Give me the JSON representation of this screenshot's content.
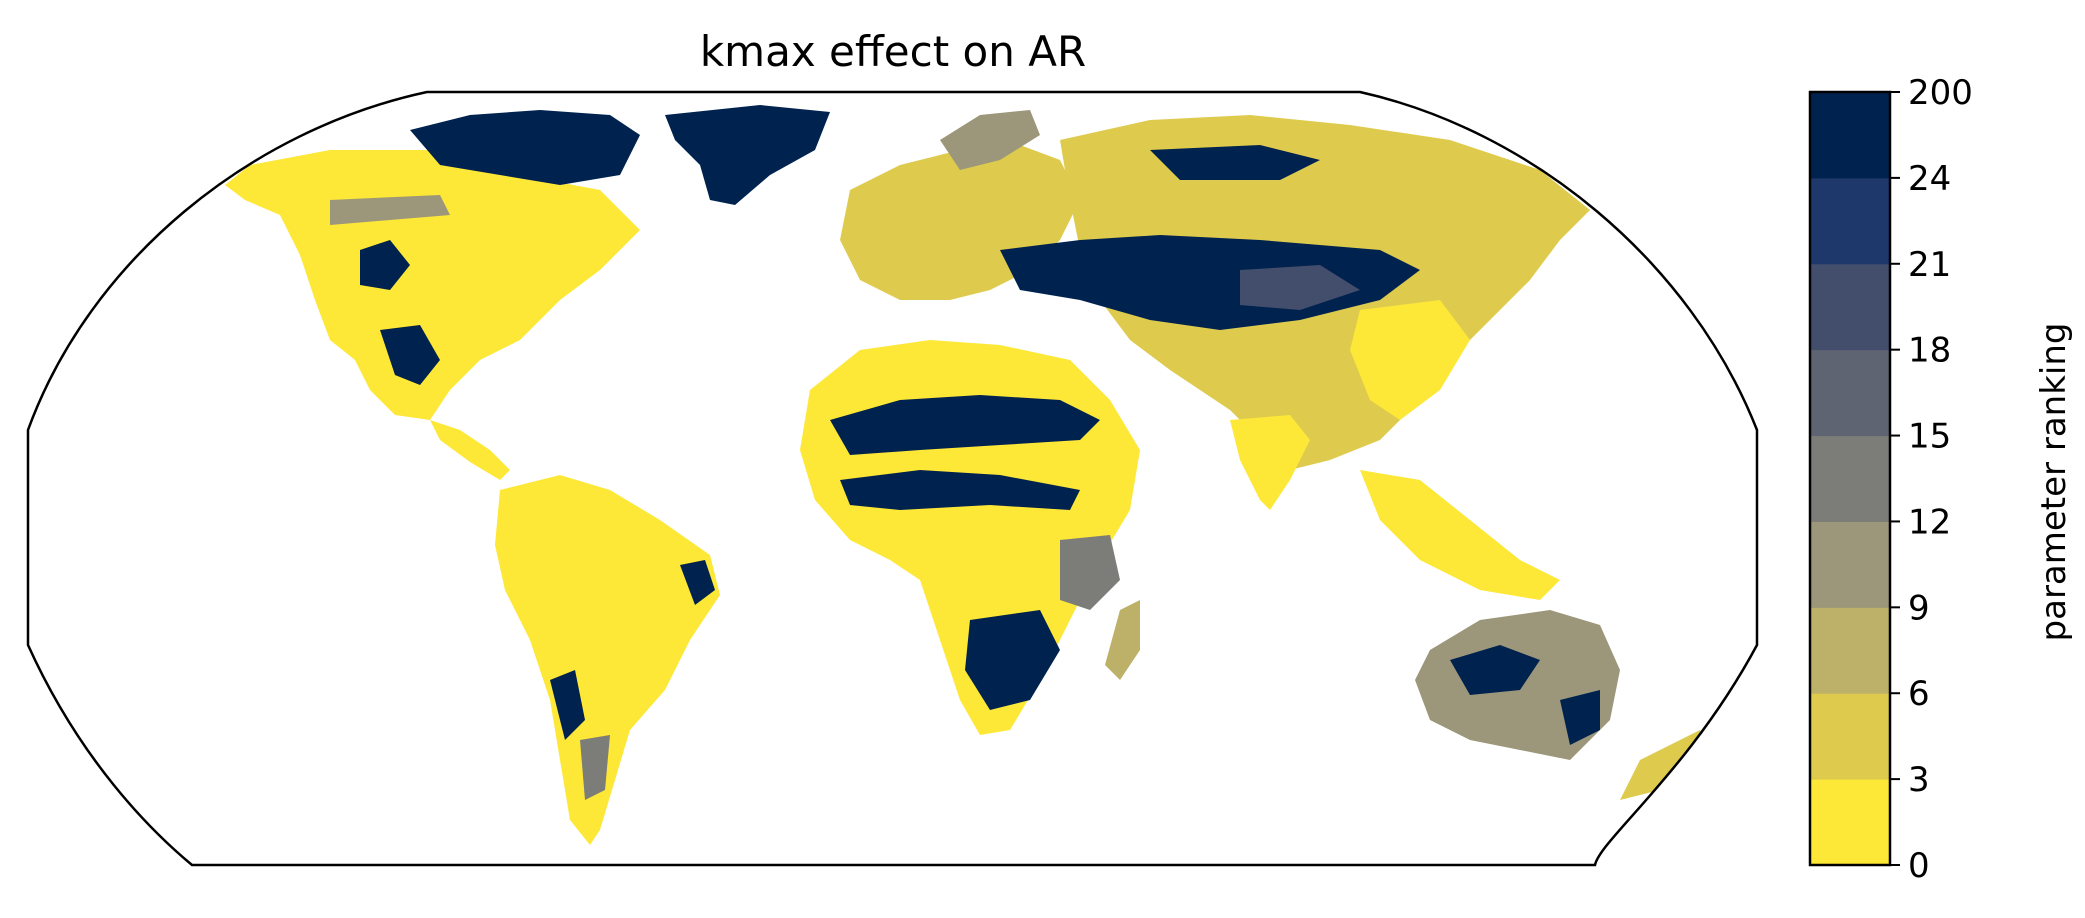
{
  "title": "kmax effect on AR",
  "colorbar": {
    "label": "parameter ranking",
    "ticks": [
      "0",
      "3",
      "6",
      "9",
      "12",
      "15",
      "18",
      "21",
      "24",
      "200"
    ],
    "colors": [
      "#fde737",
      "#decb4e",
      "#bdb068",
      "#9c967a",
      "#7c7c78",
      "#5f6472",
      "#434e6c",
      "#1f386b",
      "#00224e"
    ]
  },
  "map": {
    "projection": "Robinson",
    "coastline_color": "#808080",
    "outline_color": "#000000"
  }
}
